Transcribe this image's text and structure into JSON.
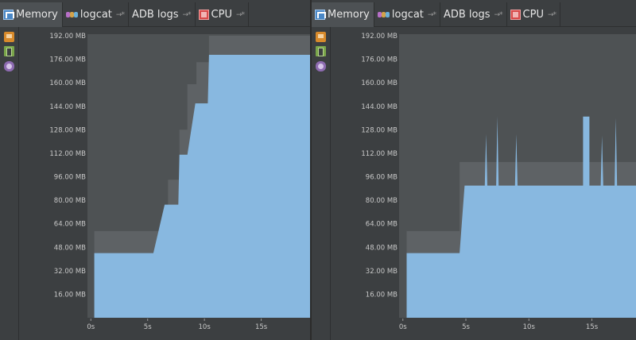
{
  "tabs": [
    {
      "label": "Memory",
      "icon": "memory-monitor-icon",
      "active": true
    },
    {
      "label": "logcat",
      "icon": "logcat-icon",
      "active": false
    },
    {
      "label": "ADB logs",
      "icon": "",
      "active": false
    },
    {
      "label": "CPU",
      "icon": "cpu-monitor-icon",
      "active": false
    }
  ],
  "toolbar_icons": [
    "gc-icon",
    "dump-java-heap-icon",
    "allocation-tracker-icon"
  ],
  "colors": {
    "background": "#3c3f41",
    "plot_background": "#4e5254",
    "allocated_area": "#88b8e0",
    "free_area": "#5e6265",
    "axis_text": "#c8c8c8"
  },
  "chart_data": [
    {
      "type": "area",
      "title": "",
      "xlabel": "",
      "ylabel": "",
      "ylim": [
        0,
        192
      ],
      "xlim": [
        -0.3,
        19.3
      ],
      "yticks": [
        "192.00 MB",
        "176.00 MB",
        "160.00 MB",
        "144.00 MB",
        "128.00 MB",
        "112.00 MB",
        "96.00 MB",
        "80.00 MB",
        "64.00 MB",
        "48.00 MB",
        "32.00 MB",
        "16.00 MB"
      ],
      "ytick_values": [
        192,
        176,
        160,
        144,
        128,
        112,
        96,
        80,
        64,
        48,
        32,
        16
      ],
      "xticks": [
        "0s",
        "5s",
        "10s",
        "15s"
      ],
      "xtick_values": [
        0,
        5,
        10,
        15
      ],
      "series": [
        {
          "role": "free",
          "x": [
            0.3,
            0.3,
            5.5,
            5.5,
            6.8,
            6.8,
            7.8,
            7.8,
            8.5,
            8.5,
            9.3,
            9.3,
            10.4,
            10.4,
            19.3
          ],
          "values": [
            0,
            59,
            59,
            59,
            59,
            94,
            94,
            128,
            128,
            159,
            159,
            174,
            174,
            192,
            192
          ]
        },
        {
          "role": "allocated",
          "x": [
            0.3,
            0.3,
            5.5,
            6.5,
            6.8,
            7.7,
            7.8,
            8.4,
            8.5,
            9.2,
            9.3,
            10.3,
            10.4,
            19.3
          ],
          "values": [
            0,
            44,
            44,
            77,
            77,
            77,
            111,
            111,
            111,
            146,
            146,
            146,
            179,
            179
          ]
        }
      ]
    },
    {
      "type": "area",
      "title": "",
      "xlabel": "",
      "ylabel": "",
      "ylim": [
        0,
        192
      ],
      "xlim": [
        -0.3,
        18.5
      ],
      "yticks": [
        "192.00 MB",
        "176.00 MB",
        "160.00 MB",
        "144.00 MB",
        "128.00 MB",
        "112.00 MB",
        "96.00 MB",
        "80.00 MB",
        "64.00 MB",
        "48.00 MB",
        "32.00 MB",
        "16.00 MB"
      ],
      "ytick_values": [
        192,
        176,
        160,
        144,
        128,
        112,
        96,
        80,
        64,
        48,
        32,
        16
      ],
      "xticks": [
        "0s",
        "5s",
        "10s",
        "15s"
      ],
      "xtick_values": [
        0,
        5,
        10,
        15
      ],
      "series": [
        {
          "role": "free",
          "x": [
            0.3,
            0.3,
            4.5,
            4.5,
            18.5
          ],
          "values": [
            0,
            59,
            59,
            106,
            106
          ]
        },
        {
          "role": "allocated",
          "x": [
            0.3,
            0.3,
            4.5,
            4.9,
            6.5,
            6.6,
            6.7,
            7.4,
            7.5,
            7.6,
            8.9,
            9.0,
            9.1,
            14.3,
            14.3,
            14.8,
            14.8,
            15.7,
            15.8,
            15.9,
            16.8,
            16.9,
            17.0,
            18.5
          ],
          "values": [
            0,
            44,
            44,
            90,
            90,
            125,
            90,
            90,
            137,
            90,
            90,
            125,
            90,
            90,
            137,
            137,
            90,
            90,
            124,
            90,
            90,
            136,
            90,
            90
          ]
        }
      ]
    }
  ]
}
